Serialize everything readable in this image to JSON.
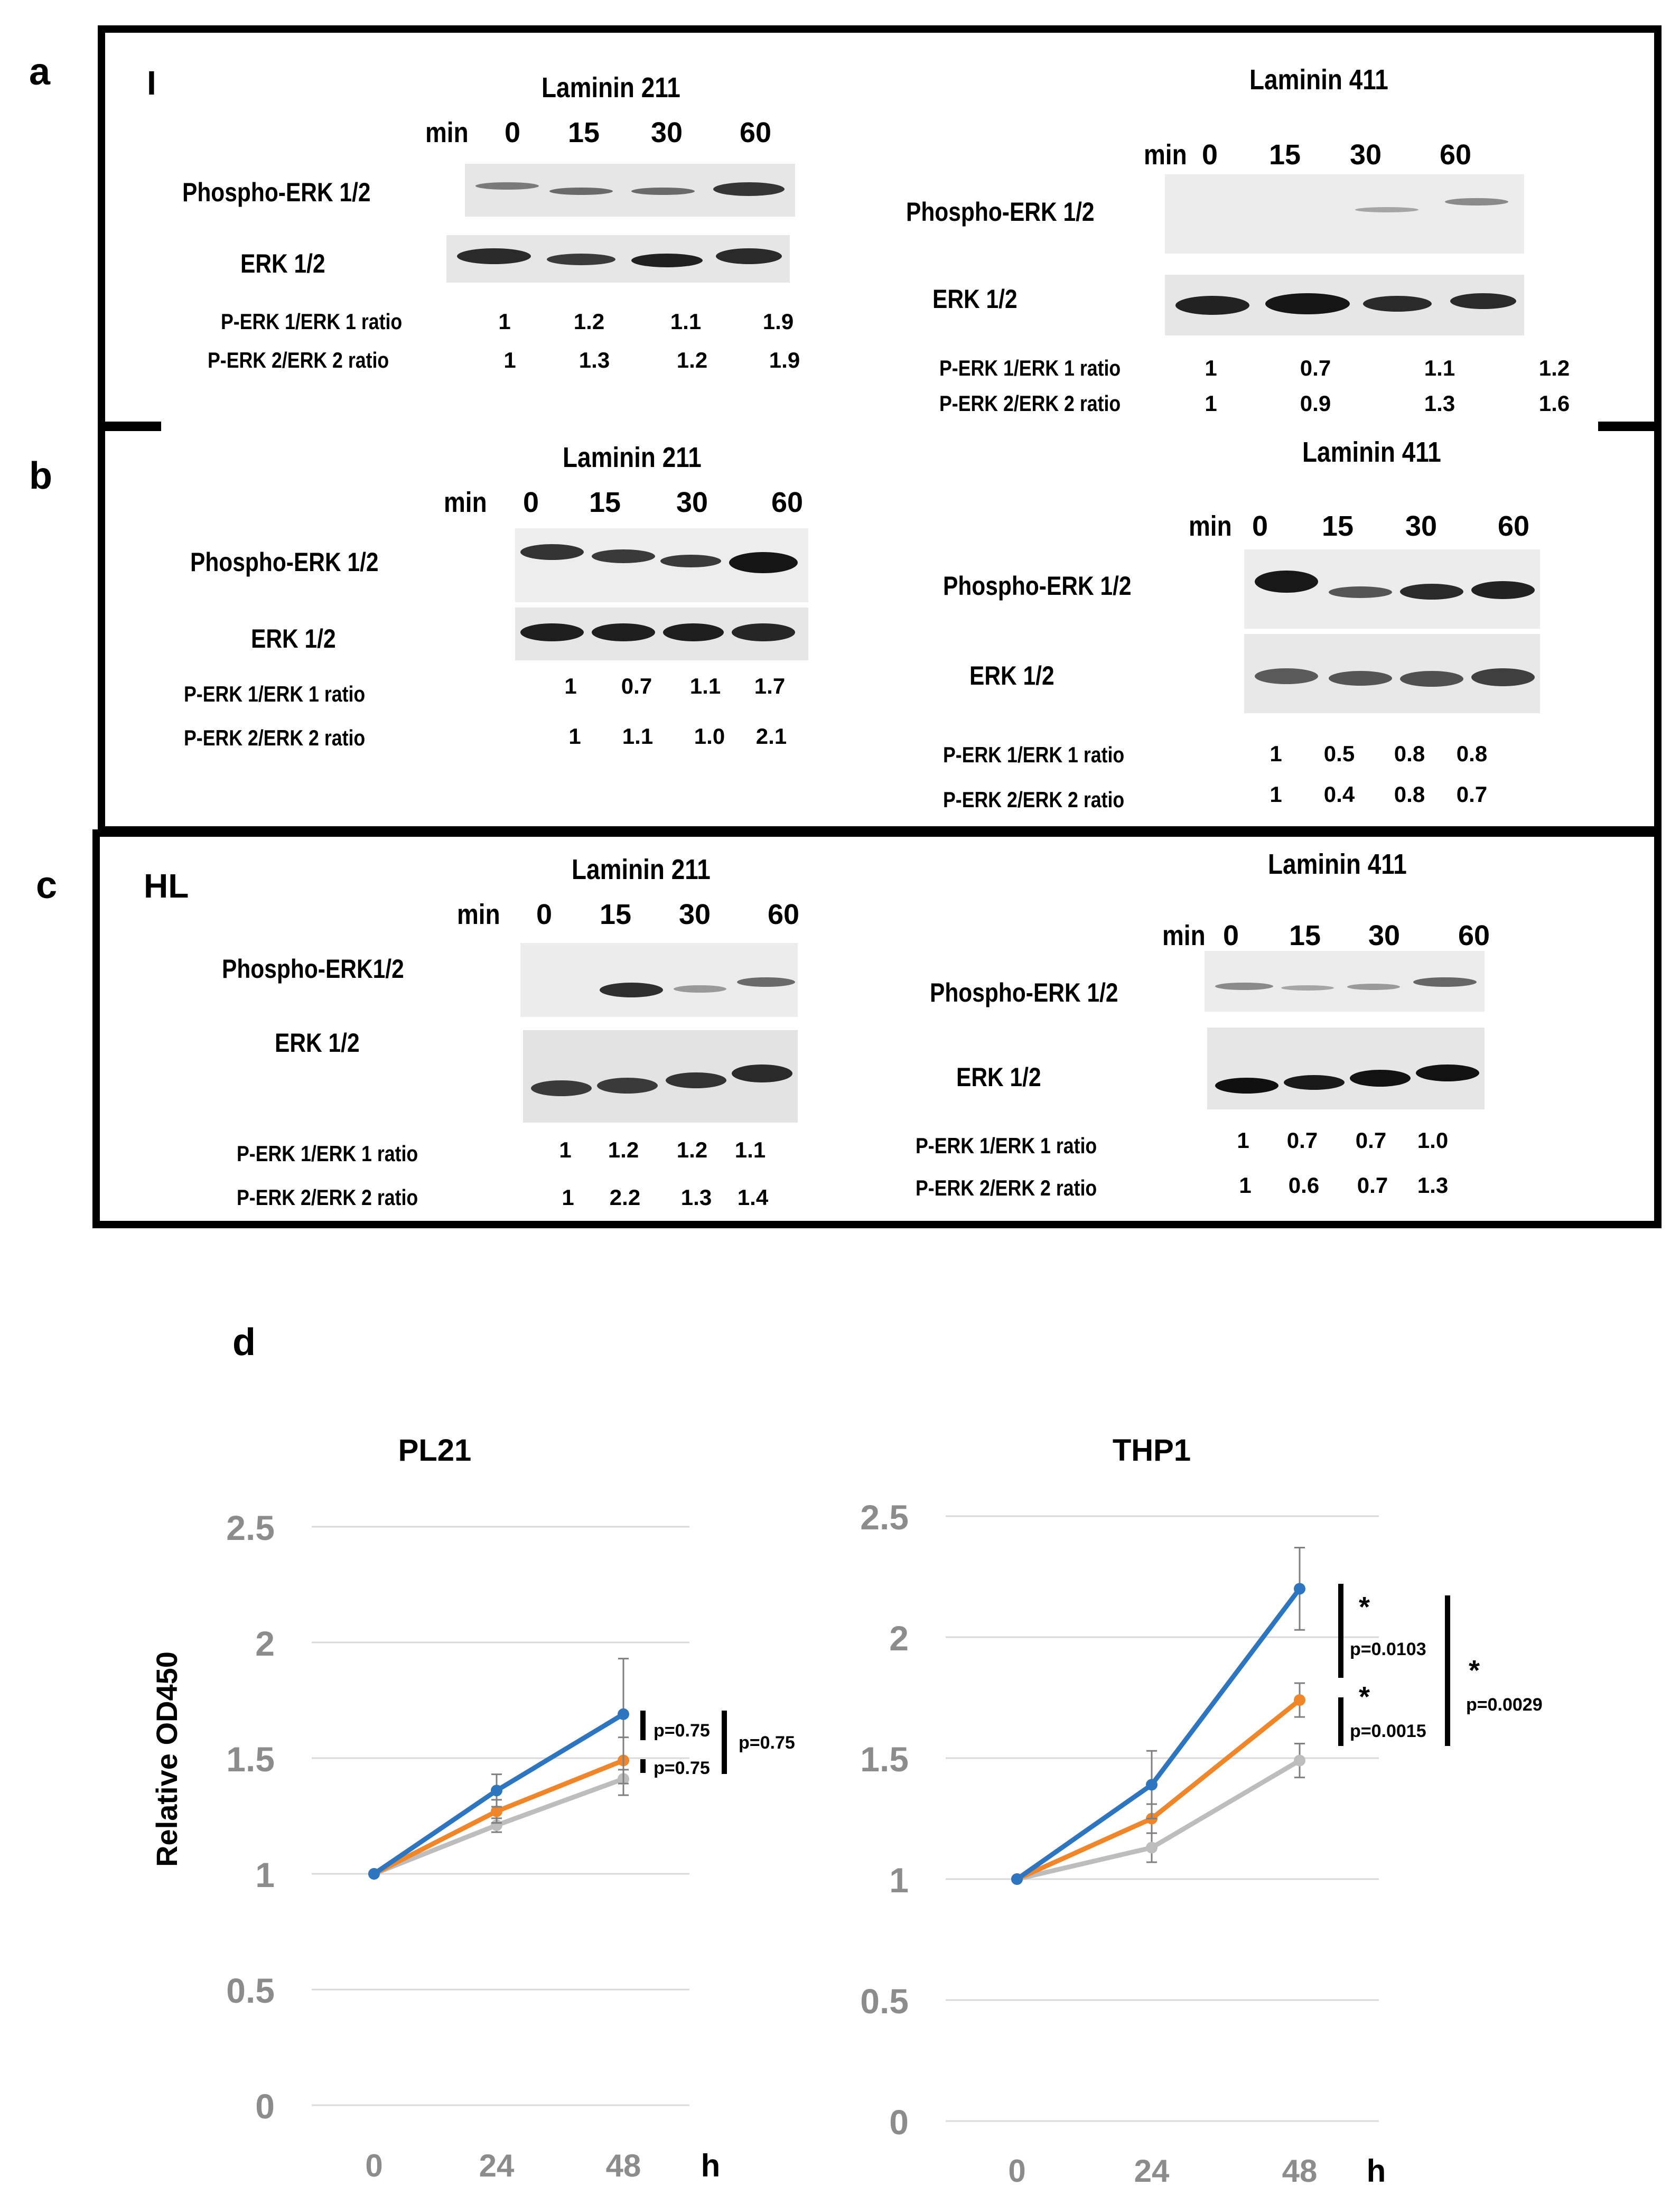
{
  "panel_labels": {
    "a": "a",
    "b": "b",
    "c": "c",
    "d": "d"
  },
  "panel_a": {
    "cell_label": "I",
    "left": {
      "title": "Laminin 211",
      "min_label": "min",
      "timepoints": [
        "0",
        "15",
        "30",
        "60"
      ],
      "phospho_label": "Phospho-ERK 1/2",
      "erk_label": "ERK 1/2",
      "ratio1_label": "P-ERK 1/ERK 1 ratio",
      "ratio2_label": "P-ERK 2/ERK 2 ratio",
      "ratio1": [
        "1",
        "1.2",
        "1.1",
        "1.9"
      ],
      "ratio2": [
        "1",
        "1.3",
        "1.2",
        "1.9"
      ]
    },
    "right": {
      "title": "Laminin 411",
      "min_label": "min",
      "timepoints": [
        "0",
        "15",
        "30",
        "60"
      ],
      "phospho_label": "Phospho-ERK 1/2",
      "erk_label": "ERK 1/2",
      "ratio1_label": "P-ERK 1/ERK 1 ratio",
      "ratio2_label": "P-ERK 2/ERK 2 ratio",
      "ratio1": [
        "1",
        "0.7",
        "1.1",
        "1.2"
      ],
      "ratio2": [
        "1",
        "0.9",
        "1.3",
        "1.6"
      ]
    }
  },
  "panel_b": {
    "left": {
      "title": "Laminin 211",
      "min_label": "min",
      "timepoints": [
        "0",
        "15",
        "30",
        "60"
      ],
      "phospho_label": "Phospho-ERK 1/2",
      "erk_label": "ERK 1/2",
      "ratio1_label": "P-ERK 1/ERK 1 ratio",
      "ratio2_label": "P-ERK 2/ERK 2 ratio",
      "ratio1": [
        "1",
        "0.7",
        "1.1",
        "1.7"
      ],
      "ratio2": [
        "1",
        "1.1",
        "1.0",
        "2.1"
      ]
    },
    "right": {
      "title": "Laminin 411",
      "min_label": "min",
      "timepoints": [
        "0",
        "15",
        "30",
        "60"
      ],
      "phospho_label": "Phospho-ERK 1/2",
      "erk_label": "ERK 1/2",
      "ratio1_label": "P-ERK 1/ERK 1 ratio",
      "ratio2_label": "P-ERK 2/ERK 2 ratio",
      "ratio1": [
        "1",
        "0.5",
        "0.8",
        "0.8"
      ],
      "ratio2": [
        "1",
        "0.4",
        "0.8",
        "0.7"
      ]
    }
  },
  "panel_c": {
    "cell_label": "HL",
    "left": {
      "title": "Laminin 211",
      "min_label": "min",
      "timepoints": [
        "0",
        "15",
        "30",
        "60"
      ],
      "phospho_label": "Phospho-ERK1/2",
      "erk_label": "ERK 1/2",
      "ratio1_label": "P-ERK 1/ERK 1 ratio",
      "ratio2_label": "P-ERK 2/ERK 2 ratio",
      "ratio1": [
        "1",
        "1.2",
        "1.2",
        "1.1"
      ],
      "ratio2": [
        "1",
        "2.2",
        "1.3",
        "1.4"
      ]
    },
    "right": {
      "title": "Laminin 411",
      "min_label": "min",
      "timepoints": [
        "0",
        "15",
        "30",
        "60"
      ],
      "phospho_label": "Phospho-ERK 1/2",
      "erk_label": "ERK 1/2",
      "ratio1_label": "P-ERK 1/ERK 1 ratio",
      "ratio2_label": "P-ERK 2/ERK 2 ratio",
      "ratio1": [
        "1",
        "0.7",
        "0.7",
        "1.0"
      ],
      "ratio2": [
        "1",
        "0.6",
        "0.7",
        "1.3"
      ]
    }
  },
  "chart_data": [
    {
      "type": "line",
      "title": "PL21",
      "xlabel": "h",
      "ylabel": "Relative OD450",
      "x": [
        "0",
        "24",
        "48"
      ],
      "ylim": [
        0,
        2.5
      ],
      "yticks": [
        "0",
        "0.5",
        "1",
        "1.5",
        "2",
        "2.5"
      ],
      "series": [
        {
          "name": "blue",
          "color": "#2E75C0",
          "values": [
            1.0,
            1.36,
            1.69
          ],
          "err": [
            0,
            0.07,
            0.24
          ]
        },
        {
          "name": "orange",
          "color": "#F0862A",
          "values": [
            1.0,
            1.27,
            1.49
          ],
          "err": [
            0,
            0.05,
            0.1
          ]
        },
        {
          "name": "gray",
          "color": "#BDBDBD",
          "values": [
            1.0,
            1.21,
            1.41
          ],
          "err": [
            0,
            0.03,
            0.07
          ]
        }
      ],
      "annotations": [
        "p=0.75",
        "p=0.75",
        "p=0.75"
      ]
    },
    {
      "type": "line",
      "title": "THP1",
      "xlabel": "h",
      "ylabel": "",
      "x": [
        "0",
        "24",
        "48"
      ],
      "ylim": [
        0,
        2.5
      ],
      "yticks": [
        "0",
        "0.5",
        "1",
        "1.5",
        "2",
        "2.5"
      ],
      "series": [
        {
          "name": "blue",
          "color": "#2E75C0",
          "values": [
            1.0,
            1.39,
            2.2
          ],
          "err": [
            0,
            0.14,
            0.17
          ]
        },
        {
          "name": "orange",
          "color": "#F0862A",
          "values": [
            1.0,
            1.25,
            1.74
          ],
          "err": [
            0,
            0.06,
            0.07
          ]
        },
        {
          "name": "gray",
          "color": "#BDBDBD",
          "values": [
            1.0,
            1.13,
            1.49
          ],
          "err": [
            0,
            0.06,
            0.07
          ]
        }
      ],
      "annotations": [
        "*",
        "p=0.0103",
        "*",
        "p=0.0015",
        "*",
        "p=0.0029"
      ]
    }
  ]
}
